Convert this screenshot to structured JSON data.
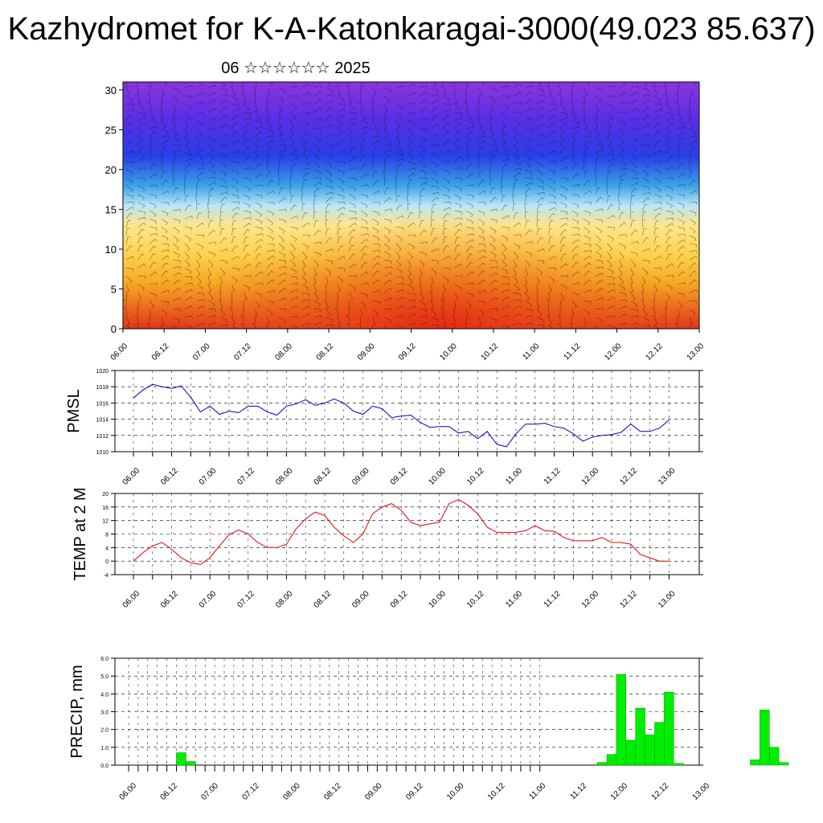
{
  "title": "Kazhydromet for K-A-Katonkaragai-3000(49.023 85.637)",
  "subtitle": "06 ☆☆☆☆☆☆ 2025",
  "chart_data": [
    {
      "type": "heatmap",
      "title": "",
      "xlabel": "",
      "ylabel": "",
      "x_ticks": [
        "06.00",
        "06.12",
        "07.00",
        "07.12",
        "08.00",
        "08.12",
        "09.00",
        "09.12",
        "10.00",
        "10.12",
        "11.00",
        "11.12",
        "12.00",
        "12.12",
        "13.00"
      ],
      "y_ticks": [
        0,
        5,
        10,
        15,
        20,
        25,
        30
      ],
      "ylim": [
        0,
        31
      ],
      "overlay": "wind barbs",
      "colormap": [
        "#e3341a",
        "#f5a623",
        "#fcd34d",
        "#fde68a",
        "#b9e6f6",
        "#3aa3e8",
        "#2a3ee8",
        "#5a2ee6",
        "#8a36de"
      ]
    },
    {
      "type": "line",
      "title": "",
      "xlabel": "",
      "ylabel": "PMSL",
      "x_ticks": [
        "06.00",
        "06.12",
        "07.00",
        "07.12",
        "08.00",
        "08.12",
        "09.00",
        "09.12",
        "10.00",
        "10.12",
        "11.00",
        "11.12",
        "12.00",
        "12.12",
        "13.00"
      ],
      "y_ticks": [
        "1010",
        "1012",
        "1014",
        "1016",
        "1018",
        "1020"
      ],
      "ylim": [
        1010,
        1020
      ],
      "color": "#0000cc",
      "series": [
        {
          "values": [
            1016.6,
            1017.6,
            1018.3,
            1018.0,
            1017.8,
            1018.1,
            1016.7,
            1014.9,
            1015.6,
            1014.6,
            1015.0,
            1014.8,
            1015.6,
            1015.6,
            1014.9,
            1014.5,
            1015.6,
            1015.9,
            1016.4,
            1015.7,
            1016.0,
            1016.5,
            1016.0,
            1015.0,
            1014.6,
            1015.6,
            1015.3,
            1014.2,
            1014.4,
            1014.5,
            1013.6,
            1013.0,
            1013.1,
            1013.1,
            1012.3,
            1012.5,
            1011.6,
            1012.5,
            1010.9,
            1010.6,
            1012.2,
            1013.4,
            1013.4,
            1013.5,
            1013.1,
            1012.9,
            1012.2,
            1011.3,
            1011.8,
            1012.0,
            1012.1,
            1012.4,
            1013.4,
            1012.5,
            1012.5,
            1012.9,
            1013.9
          ]
        }
      ]
    },
    {
      "type": "line",
      "title": "",
      "xlabel": "",
      "ylabel": "TEMP at 2 M",
      "x_ticks": [
        "06.00",
        "06.12",
        "07.00",
        "07.12",
        "08.00",
        "08.12",
        "09.00",
        "09.12",
        "10.00",
        "10.12",
        "11.00",
        "11.12",
        "12.00",
        "12.12",
        "13.00"
      ],
      "y_ticks": [
        "-4",
        "0",
        "4",
        "8",
        "12",
        "16",
        "20"
      ],
      "ylim": [
        -4,
        20
      ],
      "color": "#e00000",
      "series": [
        {
          "values": [
            0.0,
            2.5,
            4.5,
            5.5,
            3.5,
            1.0,
            -0.5,
            -1.0,
            1.0,
            4.5,
            7.8,
            9.2,
            8.0,
            5.5,
            4.0,
            4.0,
            5.0,
            9.5,
            12.5,
            14.5,
            13.5,
            10.0,
            7.5,
            5.5,
            8.0,
            14.0,
            16.0,
            17.0,
            15.0,
            11.5,
            10.5,
            11.0,
            11.5,
            17.0,
            18.2,
            16.5,
            14.0,
            10.0,
            8.5,
            8.5,
            8.5,
            9.0,
            10.5,
            9.0,
            8.8,
            7.0,
            6.0,
            6.0,
            6.0,
            7.0,
            5.5,
            5.5,
            5.0,
            2.0,
            1.0,
            0.0,
            0.0
          ]
        }
      ]
    },
    {
      "type": "bar",
      "title": "",
      "xlabel": "",
      "ylabel": "PRECIP, mm",
      "x_ticks": [
        "06.00",
        "06.12",
        "07.00",
        "07.12",
        "08.00",
        "08.12",
        "09.00",
        "09.12",
        "10.00",
        "10.12",
        "11.00",
        "11.12",
        "12.00",
        "12.12",
        "13.00"
      ],
      "y_ticks": [
        "0.0",
        "1.0",
        "2.0",
        "3.0",
        "4.0",
        "5.0",
        "6.0"
      ],
      "ylim": [
        0,
        6
      ],
      "color": "#00ee00",
      "series": [
        {
          "values": [
            0,
            0,
            0,
            0,
            0,
            0.7,
            0.2,
            0,
            0,
            0,
            0,
            0,
            0,
            0,
            0,
            0,
            0,
            0,
            0,
            0,
            0,
            0,
            0,
            0,
            0,
            0,
            0,
            0,
            0,
            0,
            0,
            0,
            0,
            0,
            0,
            0,
            0,
            0,
            0,
            0,
            0,
            0,
            0,
            0,
            0,
            0,
            0,
            0,
            0,
            0.15,
            0.6,
            5.1,
            1.4,
            3.2,
            1.7,
            2.4,
            4.1,
            0.1,
            0,
            0,
            0,
            0,
            0,
            0,
            0,
            0.3,
            3.1,
            1.0,
            0.15,
            0,
            0,
            0,
            0,
            0,
            0,
            0,
            0,
            0,
            0,
            0,
            0,
            0,
            0,
            0,
            0,
            0
          ]
        }
      ]
    }
  ]
}
